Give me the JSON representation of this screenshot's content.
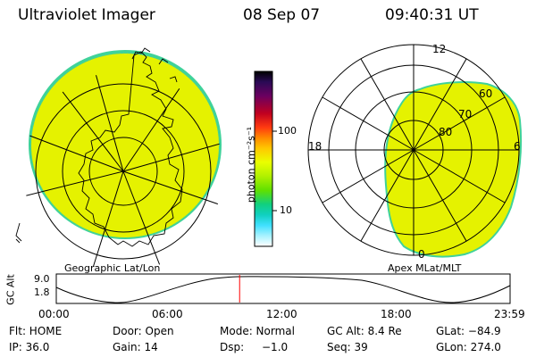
{
  "header": {
    "title": "Ultraviolet Imager",
    "date": "08 Sep 07",
    "time": "09:40:31 UT"
  },
  "left_panel": {
    "caption": "Geographic Lat/Lon"
  },
  "right_panel": {
    "caption": "Apex MLat/MLT",
    "mlt_labels": {
      "top": "12",
      "left": "18",
      "right": "6",
      "bottom": "0"
    },
    "lat_labels": [
      "60",
      "70",
      "80"
    ]
  },
  "colorbar": {
    "unit_label": "photon cm⁻²s⁻¹",
    "ticks": [
      "100",
      "10"
    ],
    "colors_top_to_bottom": [
      "#000000",
      "#2a0a55",
      "#7a0060",
      "#c00020",
      "#e21010",
      "#ff5a00",
      "#ff9900",
      "#ffd200",
      "#eaff00",
      "#b0f000",
      "#5fe000",
      "#10d070",
      "#10d0c0",
      "#40e0ff",
      "#a8f2ff",
      "#ffffff"
    ]
  },
  "altitude_plot": {
    "ylabel": "GC Alt",
    "yticks": [
      "9.0",
      "1.8"
    ],
    "xticks": [
      "00:00",
      "06:00",
      "12:00",
      "18:00",
      "23:59"
    ],
    "current_time_fraction": 0.404
  },
  "info": {
    "flt": "Flt: HOME",
    "door": "Door: Open",
    "mode": "Mode: Normal",
    "gcalt": "GC Alt: 8.4 Re",
    "glat": "GLat: −84.9",
    "ip": "IP: 36.0",
    "gain": "Gain: 14",
    "dsp": "Dsp:",
    "dsp_val": "−1.0",
    "seq": "Seq: 39",
    "glon": "GLon: 274.0"
  },
  "colors": {
    "fill": "#e5f200",
    "rim": "#3fd29a",
    "marker": "#ff0000"
  }
}
